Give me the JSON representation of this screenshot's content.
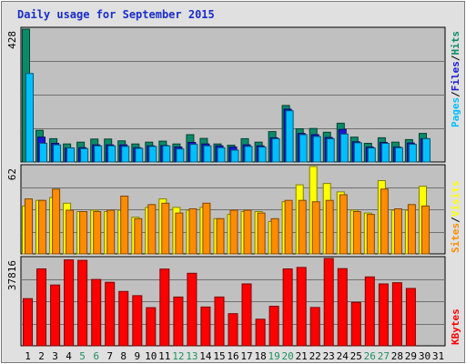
{
  "title": "Daily usage for September 2015",
  "colors": {
    "hits": "#0b8a6a",
    "files": "#1717d9",
    "pages": "#00bfff",
    "visits": "#ffff00",
    "sites": "#ff8c00",
    "kbytes": "#ff0000",
    "panel_bg": "#c0c0c0",
    "title": "#1a2cc7",
    "weekend_day": "#1f8f5f",
    "weekday": "#000000"
  },
  "legend": {
    "hits": "Hits",
    "files": "Files",
    "pages": "Pages",
    "visits": "Visits",
    "sites": "Sites",
    "kbytes": "KBytes",
    "sep": "/"
  },
  "chart_data": [
    {
      "type": "bar",
      "panel": "hits-files-pages",
      "max_label": "428",
      "ylim": [
        0,
        428
      ],
      "x": [
        1,
        2,
        3,
        4,
        5,
        6,
        7,
        8,
        9,
        10,
        11,
        12,
        13,
        14,
        15,
        16,
        17,
        18,
        19,
        20,
        21,
        22,
        23,
        24,
        25,
        26,
        27,
        28,
        29,
        30,
        31
      ],
      "series": [
        {
          "name": "Hits",
          "values": [
            428,
            102,
            75,
            58,
            64,
            74,
            74,
            68,
            58,
            64,
            67,
            58,
            88,
            76,
            58,
            54,
            75,
            64,
            98,
            182,
            107,
            108,
            96,
            125,
            80,
            60,
            78,
            64,
            72,
            92,
            0
          ]
        },
        {
          "name": "Files",
          "values": [
            0,
            80,
            60,
            45,
            46,
            55,
            55,
            55,
            46,
            52,
            53,
            48,
            63,
            58,
            52,
            48,
            55,
            52,
            78,
            170,
            92,
            88,
            79,
            105,
            65,
            48,
            63,
            48,
            61,
            75,
            0
          ]
        },
        {
          "name": "Pages",
          "values": [
            285,
            60,
            55,
            45,
            43,
            52,
            52,
            50,
            44,
            50,
            52,
            42,
            57,
            52,
            46,
            38,
            50,
            48,
            75,
            165,
            88,
            82,
            75,
            90,
            62,
            45,
            60,
            46,
            57,
            75,
            0
          ]
        }
      ]
    },
    {
      "type": "bar",
      "panel": "visits-sites",
      "max_label": "62",
      "ylim": [
        0,
        62
      ],
      "x": [
        1,
        2,
        3,
        4,
        5,
        6,
        7,
        8,
        9,
        10,
        11,
        12,
        13,
        14,
        15,
        16,
        17,
        18,
        19,
        20,
        21,
        22,
        23,
        24,
        25,
        26,
        27,
        28,
        29,
        30,
        31
      ],
      "series": [
        {
          "name": "Visits",
          "values": [
            34,
            38,
            40,
            36,
            30,
            31,
            30,
            31,
            26,
            33,
            39,
            33,
            31,
            33,
            25,
            28,
            30,
            30,
            23,
            37,
            49,
            62,
            50,
            44,
            31,
            29,
            52,
            31,
            31,
            48,
            0
          ]
        },
        {
          "name": "Sites",
          "values": [
            39,
            38,
            46,
            31,
            30,
            30,
            31,
            41,
            25,
            35,
            36,
            29,
            32,
            36,
            25,
            31,
            31,
            29,
            25,
            38,
            38,
            37,
            38,
            42,
            30,
            28,
            46,
            32,
            35,
            34,
            0
          ]
        }
      ]
    },
    {
      "type": "bar",
      "panel": "kbytes",
      "max_label": "37816",
      "ylim": [
        0,
        37816
      ],
      "x": [
        1,
        2,
        3,
        4,
        5,
        6,
        7,
        8,
        9,
        10,
        11,
        12,
        13,
        14,
        15,
        16,
        17,
        18,
        19,
        20,
        21,
        22,
        23,
        24,
        25,
        26,
        27,
        28,
        29,
        30,
        31
      ],
      "series": [
        {
          "name": "KBytes",
          "values": [
            20400,
            33300,
            26300,
            37200,
            37000,
            28700,
            27500,
            23500,
            21700,
            16500,
            33200,
            21100,
            31400,
            16800,
            21100,
            13900,
            26800,
            11500,
            17100,
            33300,
            33900,
            16600,
            37800,
            33400,
            18800,
            29800,
            26800,
            27300,
            24800,
            0,
            0
          ]
        }
      ]
    }
  ],
  "days": [
    {
      "label": "1",
      "weekend": false
    },
    {
      "label": "2",
      "weekend": false
    },
    {
      "label": "3",
      "weekend": false
    },
    {
      "label": "4",
      "weekend": false
    },
    {
      "label": "5",
      "weekend": true
    },
    {
      "label": "6",
      "weekend": true
    },
    {
      "label": "7",
      "weekend": false
    },
    {
      "label": "8",
      "weekend": false
    },
    {
      "label": "9",
      "weekend": false
    },
    {
      "label": "10",
      "weekend": false
    },
    {
      "label": "11",
      "weekend": false
    },
    {
      "label": "12",
      "weekend": true
    },
    {
      "label": "13",
      "weekend": true
    },
    {
      "label": "14",
      "weekend": false
    },
    {
      "label": "15",
      "weekend": false
    },
    {
      "label": "16",
      "weekend": false
    },
    {
      "label": "17",
      "weekend": false
    },
    {
      "label": "18",
      "weekend": false
    },
    {
      "label": "19",
      "weekend": true
    },
    {
      "label": "20",
      "weekend": true
    },
    {
      "label": "21",
      "weekend": false
    },
    {
      "label": "22",
      "weekend": false
    },
    {
      "label": "23",
      "weekend": false
    },
    {
      "label": "24",
      "weekend": false
    },
    {
      "label": "25",
      "weekend": false
    },
    {
      "label": "26",
      "weekend": true
    },
    {
      "label": "27",
      "weekend": true
    },
    {
      "label": "28",
      "weekend": false
    },
    {
      "label": "29",
      "weekend": false
    },
    {
      "label": "30",
      "weekend": false
    },
    {
      "label": "31",
      "weekend": false
    }
  ]
}
